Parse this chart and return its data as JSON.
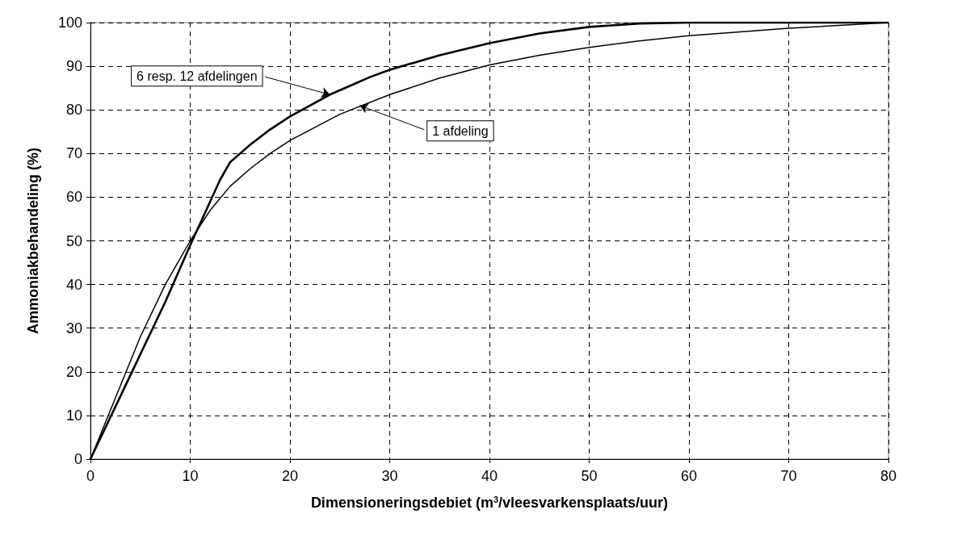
{
  "chart_data": {
    "type": "line",
    "xlabel": "Dimensioneringsdebiet (m$^{3}$/vleesvarkensplaats/uur)",
    "ylabel": "Ammoniakbehandeling (%)",
    "xlim": [
      0,
      80
    ],
    "xticks": [
      0,
      10,
      20,
      30,
      40,
      50,
      60,
      70,
      80
    ],
    "ylim": [
      0,
      100
    ],
    "yticks": [
      0,
      10,
      20,
      30,
      40,
      50,
      60,
      70,
      80,
      90,
      100
    ],
    "grid": true,
    "marker": "none",
    "line_style": "solid",
    "series": [
      {
        "color": "#000000",
        "x": [
          0,
          2.5,
          5,
          7.5,
          10,
          12,
          13,
          14,
          16,
          18,
          20,
          22,
          24,
          26,
          28,
          30,
          35,
          40,
          45,
          50,
          55,
          60,
          80
        ],
        "values": [
          0,
          12,
          24,
          36,
          49,
          59,
          64,
          68,
          72,
          75.5,
          78.5,
          81,
          83.5,
          85.5,
          87.5,
          89.2,
          92.5,
          95.3,
          97.5,
          99,
          99.8,
          100,
          100
        ]
      },
      {
        "color": "#000000",
        "x": [
          0,
          2.5,
          5,
          7.5,
          10,
          12,
          14,
          16,
          18,
          20,
          25,
          30,
          35,
          40,
          45,
          50,
          55,
          60,
          70,
          80
        ],
        "values": [
          0,
          14,
          28,
          40,
          50,
          57,
          62.5,
          66.5,
          70,
          73,
          79,
          83.5,
          87.3,
          90.3,
          92.5,
          94.3,
          95.8,
          97,
          98.7,
          100
        ]
      }
    ],
    "annotations": [
      {
        "text": "6 resp. 12 afdelingen",
        "x": 24,
        "y": 83.5
      },
      {
        "text": "1 afdeling",
        "x": 27,
        "y": 81
      }
    ]
  }
}
